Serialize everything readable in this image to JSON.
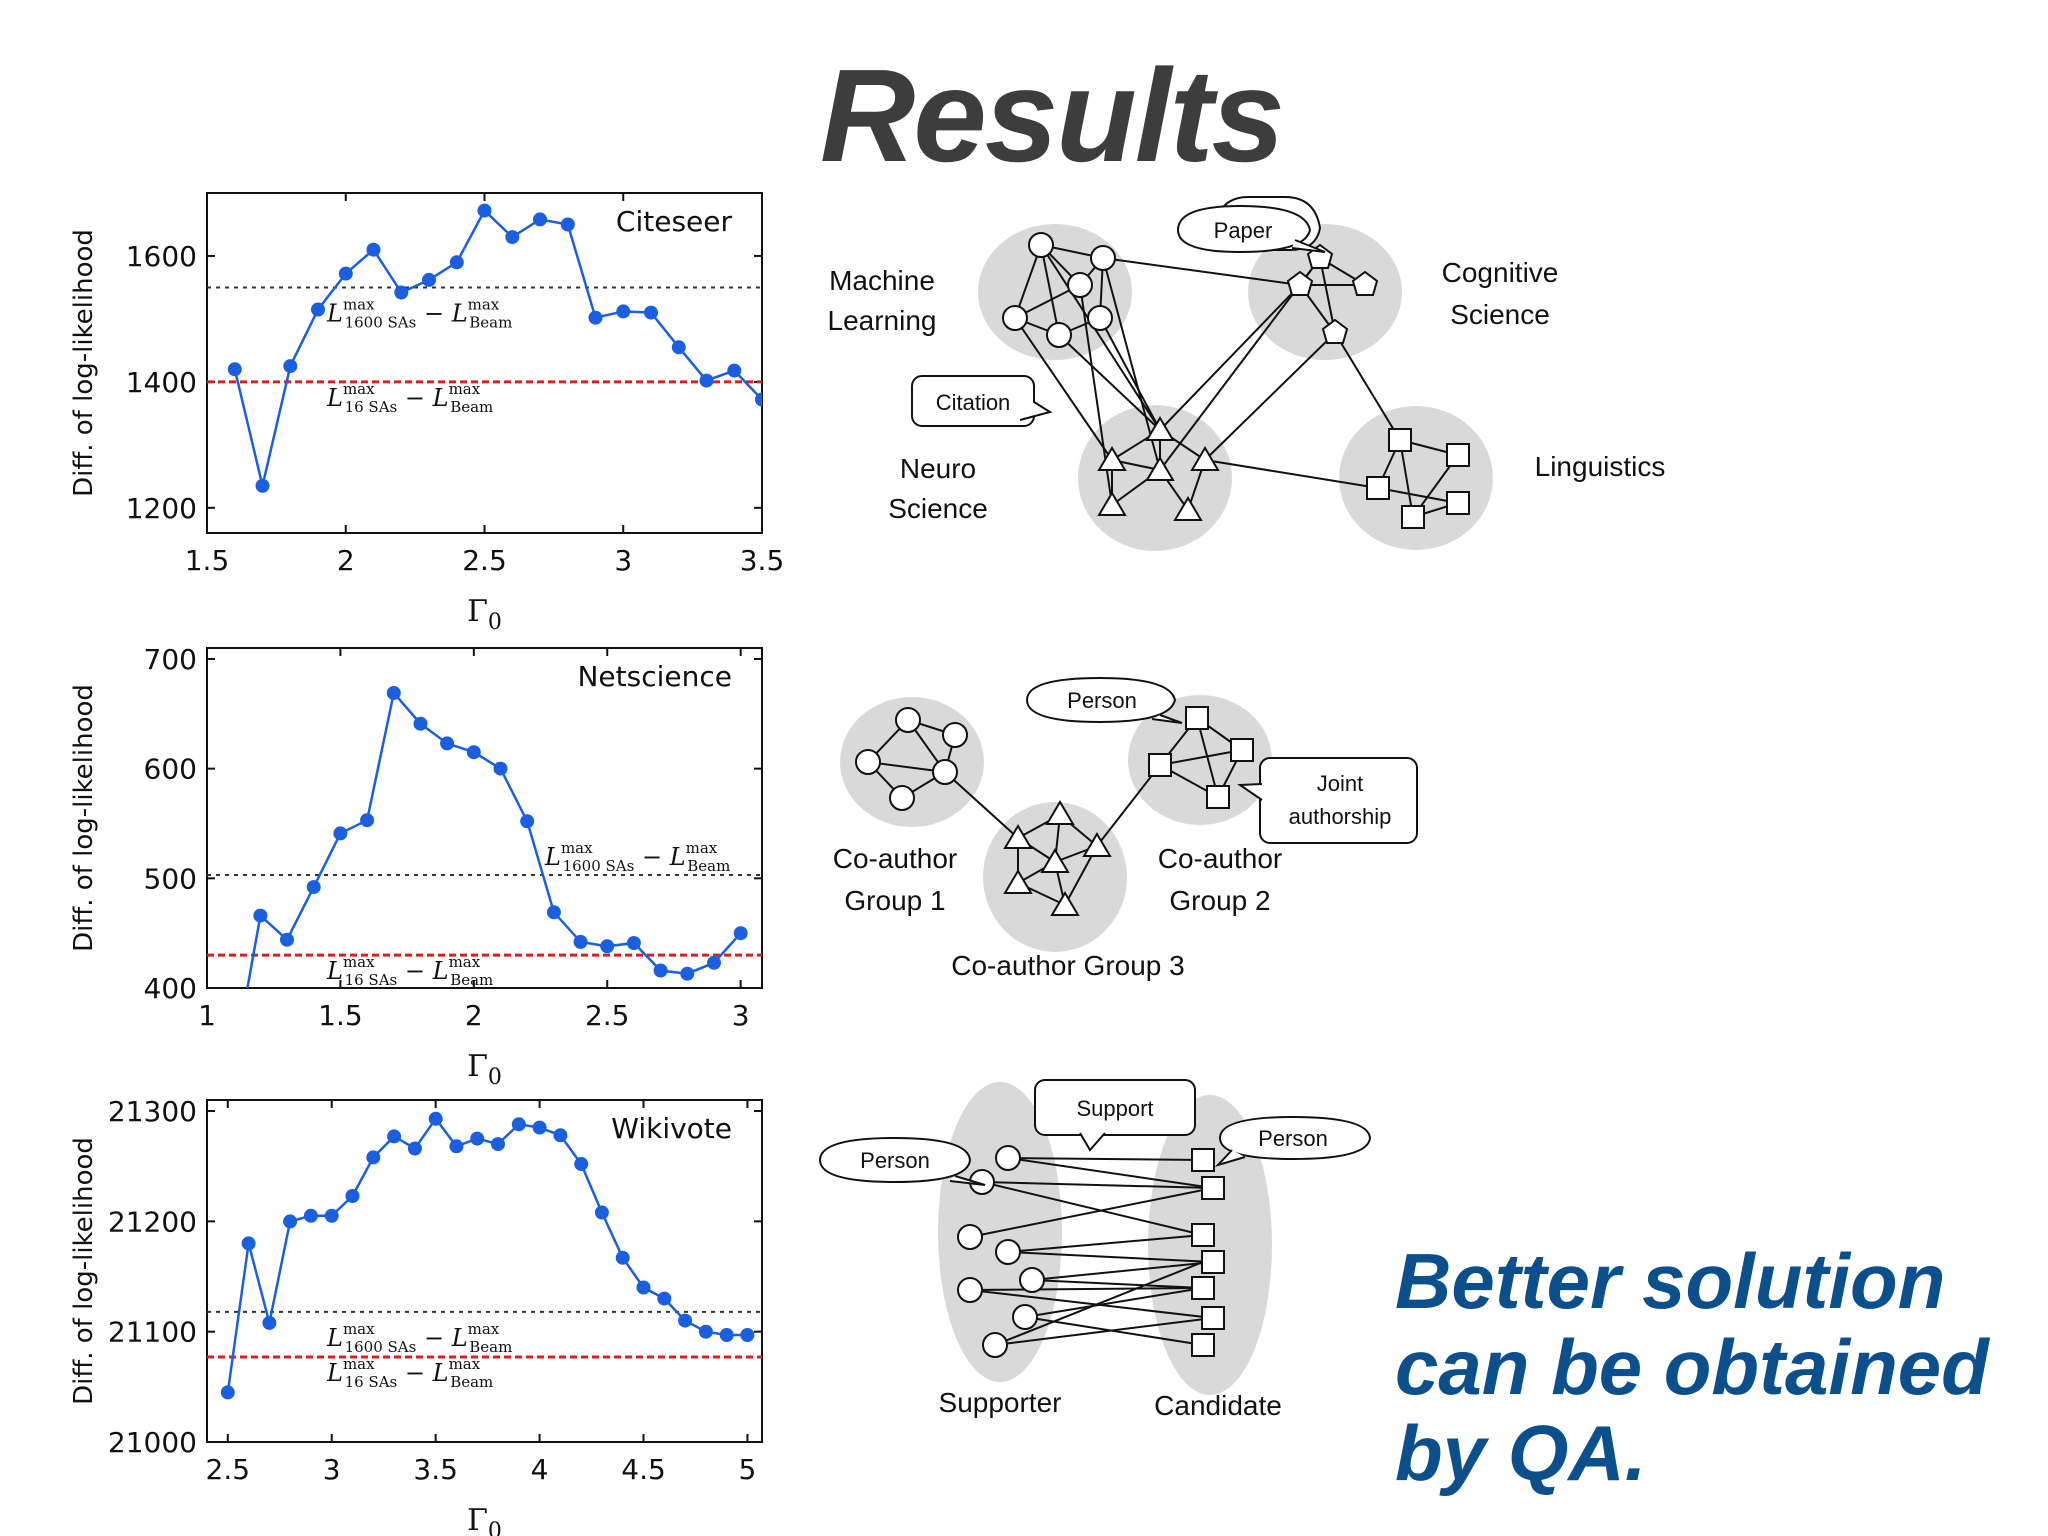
{
  "slide_title": "Results",
  "conclusion_lines": [
    "Better solution",
    "can be obtained",
    "by QA."
  ],
  "colors": {
    "series": "#1a5fe0",
    "beam16": "#d62020",
    "beam1600": "#333333",
    "conclusion": "#0b4f8c",
    "cluster": "#d9d9d9"
  },
  "chart_data": [
    {
      "type": "line",
      "name": "Citeseer",
      "xlabel": "Γ0",
      "ylabel": "Diff. of log-likelihood",
      "xlim": [
        1.5,
        3.5
      ],
      "ylim": [
        1160,
        1700
      ],
      "xticks": [
        1.5,
        2,
        2.5,
        3,
        3.5
      ],
      "xtick_labels": [
        "1.5",
        "2",
        "2.5",
        "3",
        "3.5"
      ],
      "yticks": [
        1200,
        1400,
        1600
      ],
      "x": [
        1.6,
        1.7,
        1.8,
        1.9,
        2.0,
        2.1,
        2.2,
        2.3,
        2.4,
        2.5,
        2.6,
        2.7,
        2.8,
        2.9,
        3.0,
        3.1,
        3.2,
        3.3,
        3.4,
        3.5
      ],
      "y": [
        1420,
        1235,
        1425,
        1515,
        1572,
        1610,
        1542,
        1562,
        1590,
        1672,
        1630,
        1658,
        1650,
        1502,
        1512,
        1510,
        1455,
        1402,
        1418,
        1372
      ],
      "ref_1600": 1550,
      "ref_16": 1400,
      "label_1600_pos": "middle-left",
      "label_16_pos": "middle-left"
    },
    {
      "type": "line",
      "name": "Netscience",
      "xlabel": "Γ0",
      "ylabel": "Diff. of log-likelihood",
      "xlim": [
        1,
        3.08
      ],
      "ylim": [
        400,
        710
      ],
      "xticks": [
        1,
        1.5,
        2,
        2.5,
        3
      ],
      "xtick_labels": [
        "1",
        "1.5",
        "2",
        "2.5",
        "3"
      ],
      "yticks": [
        400,
        500,
        600,
        700
      ],
      "x": [
        1.1,
        1.2,
        1.3,
        1.4,
        1.5,
        1.6,
        1.7,
        1.8,
        1.9,
        2.0,
        2.1,
        2.2,
        2.3,
        2.4,
        2.5,
        2.6,
        2.7,
        2.8,
        2.9,
        3.0
      ],
      "y": [
        330,
        466,
        444,
        492,
        541,
        553,
        669,
        641,
        623,
        615,
        600,
        552,
        469,
        442,
        438,
        441,
        416,
        413,
        423,
        450
      ],
      "ref_1600": 503,
      "ref_16": 430,
      "label_1600_pos": "middle-right",
      "label_16_pos": "middle-left"
    },
    {
      "type": "line",
      "name": "Wikivote",
      "xlabel": "Γ0",
      "ylabel": "Diff. of log-likelihood",
      "xlim": [
        2.4,
        5.07
      ],
      "ylim": [
        21000,
        21310
      ],
      "xticks": [
        2.5,
        3,
        3.5,
        4,
        4.5,
        5
      ],
      "xtick_labels": [
        "2.5",
        "3",
        "3.5",
        "4",
        "4.5",
        "5"
      ],
      "yticks": [
        21000,
        21100,
        21200,
        21300
      ],
      "x": [
        2.5,
        2.6,
        2.7,
        2.8,
        2.9,
        3.0,
        3.1,
        3.2,
        3.3,
        3.4,
        3.5,
        3.6,
        3.7,
        3.8,
        3.9,
        4.0,
        4.1,
        4.2,
        4.3,
        4.4,
        4.5,
        4.6,
        4.7,
        4.8,
        4.9,
        5.0
      ],
      "y": [
        21045,
        21180,
        21108,
        21200,
        21205,
        21205,
        21223,
        21258,
        21277,
        21266,
        21293,
        21268,
        21275,
        21270,
        21288,
        21285,
        21278,
        21252,
        21208,
        21167,
        21140,
        21130,
        21110,
        21100,
        21097,
        21097
      ],
      "ref_1600": 21118,
      "ref_16": 21077,
      "label_1600_pos": "middle-left",
      "label_16_pos": "middle-left"
    }
  ],
  "ref_labels": {
    "l1600": {
      "sub1": "1600 SAs",
      "sub2": "Beam",
      "sup": "max"
    },
    "l16": {
      "sub1": "16 SAs",
      "sub2": "Beam",
      "sup": "max"
    }
  },
  "diagrams": {
    "citeseer": {
      "labels": [
        {
          "text": "Machine",
          "key": "ml1"
        },
        {
          "text": "Learning",
          "key": "ml2"
        },
        {
          "text": "Cognitive",
          "key": "cs1"
        },
        {
          "text": "Science",
          "key": "cs2"
        },
        {
          "text": "Neuro",
          "key": "ns1"
        },
        {
          "text": "Science",
          "key": "ns2"
        },
        {
          "text": "Linguistics",
          "key": "li"
        }
      ],
      "callouts": [
        "Paper",
        "Citation"
      ]
    },
    "netscience": {
      "labels": [
        "Co-author",
        "Group 1",
        "Co-author",
        "Group 2",
        "Co-author Group 3"
      ],
      "callouts": [
        "Person",
        "Joint",
        "authorship"
      ]
    },
    "wikivote": {
      "labels": [
        "Supporter",
        "Candidate"
      ],
      "callouts": [
        "Support",
        "Person",
        "Person"
      ]
    }
  }
}
